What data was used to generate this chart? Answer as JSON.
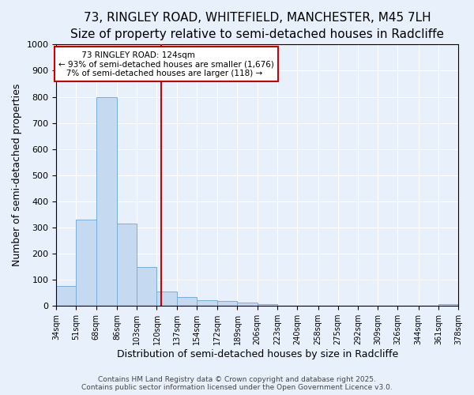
{
  "title_line1": "73, RINGLEY ROAD, WHITEFIELD, MANCHESTER, M45 7LH",
  "title_line2": "Size of property relative to semi-detached houses in Radcliffe",
  "xlabel": "Distribution of semi-detached houses by size in Radcliffe",
  "ylabel": "Number of semi-detached properties",
  "annotation_title": "73 RINGLEY ROAD: 124sqm",
  "annotation_line2": "← 93% of semi-detached houses are smaller (1,676)",
  "annotation_line3": "7% of semi-detached houses are larger (118) →",
  "footer_line1": "Contains HM Land Registry data © Crown copyright and database right 2025.",
  "footer_line2": "Contains public sector information licensed under the Open Government Licence v3.0.",
  "bar_edges": [
    34,
    51,
    68,
    86,
    103,
    120,
    137,
    154,
    172,
    189,
    206,
    223,
    240,
    258,
    275,
    292,
    309,
    326,
    344,
    361,
    378
  ],
  "bar_heights": [
    75,
    330,
    800,
    315,
    150,
    55,
    33,
    22,
    18,
    14,
    6,
    0,
    0,
    0,
    0,
    0,
    0,
    0,
    0,
    8,
    0
  ],
  "tick_labels": [
    "34sqm",
    "51sqm",
    "68sqm",
    "86sqm",
    "103sqm",
    "120sqm",
    "137sqm",
    "154sqm",
    "172sqm",
    "189sqm",
    "206sqm",
    "223sqm",
    "240sqm",
    "258sqm",
    "275sqm",
    "292sqm",
    "309sqm",
    "326sqm",
    "344sqm",
    "361sqm",
    "378sqm"
  ],
  "property_size": 124,
  "bar_color": "#c5d9f0",
  "bar_edge_color": "#7aadda",
  "vline_color": "#cc0000",
  "annotation_box_color": "#cc0000",
  "ylim": [
    0,
    1000
  ],
  "yticks": [
    0,
    100,
    200,
    300,
    400,
    500,
    600,
    700,
    800,
    900,
    1000
  ],
  "background_color": "#e8f0fb",
  "grid_color": "#ffffff",
  "title_fontsize": 11,
  "subtitle_fontsize": 9.5
}
